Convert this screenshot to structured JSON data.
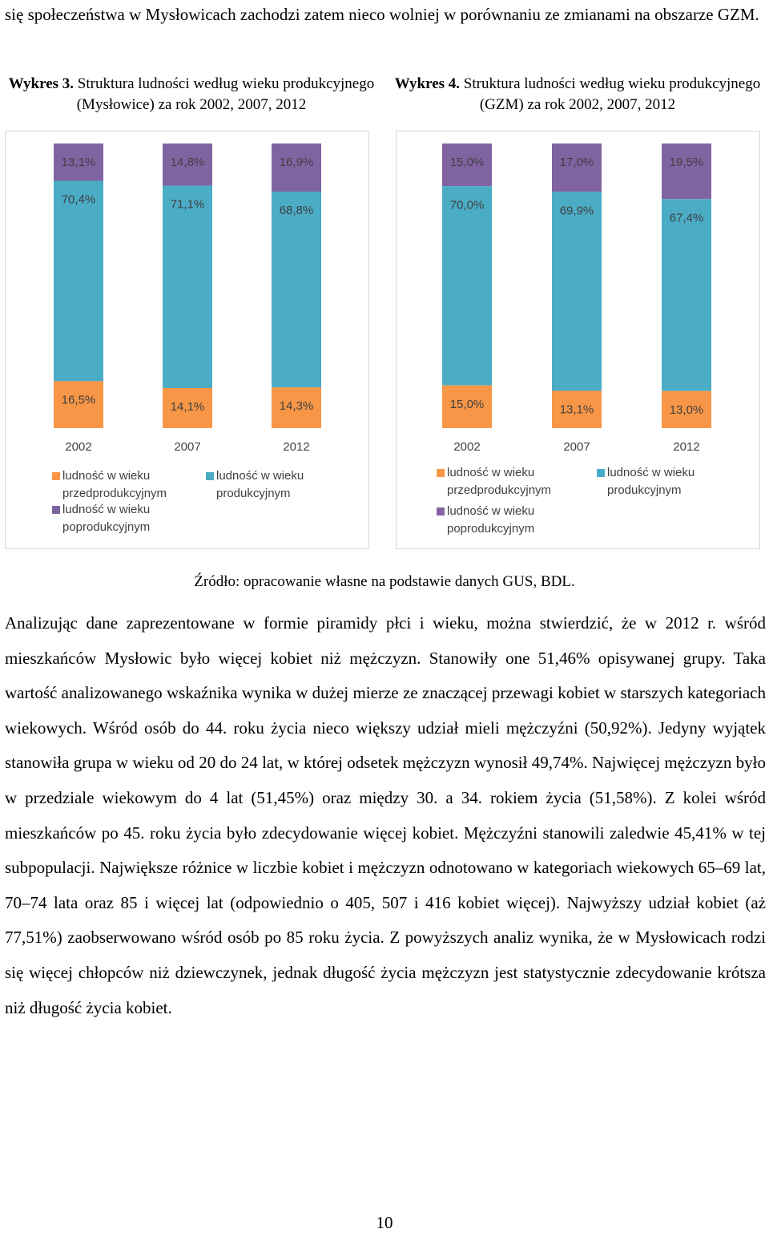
{
  "intro_text": "się społeczeństwa w Mysłowicach zachodzi zatem nieco wolniej w porównaniu ze zmianami na obszarze GZM.",
  "charts": [
    {
      "label": "Wykres 3.",
      "title": "Struktura ludności według wieku produkcyjnego (Mysłowice) za rok 2002, 2007, 2012"
    },
    {
      "label": "Wykres 4.",
      "title": "Struktura ludności według wieku produkcyjnego (GZM) za rok 2002, 2007, 2012"
    }
  ],
  "chart_data": [
    {
      "type": "bar",
      "stacked": "100%",
      "categories": [
        "2002",
        "2007",
        "2012"
      ],
      "series": [
        {
          "name": "ludność w wieku przedprodukcyjnym",
          "values": [
            16.5,
            14.1,
            14.3
          ],
          "labels": [
            "16,5%",
            "14,1%",
            "14,3%"
          ],
          "color": "#F79646"
        },
        {
          "name": "ludność w wieku produkcyjnym",
          "values": [
            70.4,
            71.1,
            68.8
          ],
          "labels": [
            "70,4%",
            "71,1%",
            "68,8%"
          ],
          "color": "#4BACC6"
        },
        {
          "name": "ludność w wieku poprodukcyjnym",
          "values": [
            13.1,
            14.8,
            16.9
          ],
          "labels": [
            "13,1%",
            "14,8%",
            "16,9%"
          ],
          "color": "#8064A2"
        }
      ],
      "legend": "bottom",
      "grid": false
    },
    {
      "type": "bar",
      "stacked": "100%",
      "categories": [
        "2002",
        "2007",
        "2012"
      ],
      "series": [
        {
          "name": "ludność w wieku przedprodukcyjnym",
          "values": [
            15.0,
            13.1,
            13.0
          ],
          "labels": [
            "15,0%",
            "13,1%",
            "13,0%"
          ],
          "color": "#F79646"
        },
        {
          "name": "ludność w wieku produkcyjnym",
          "values": [
            70.0,
            69.9,
            67.4
          ],
          "labels": [
            "70,0%",
            "69,9%",
            "67,4%"
          ],
          "color": "#4BACC6"
        },
        {
          "name": "ludność w wieku poprodukcyjnym",
          "values": [
            15.0,
            17.0,
            19.5
          ],
          "labels": [
            "15,0%",
            "17,0%",
            "19,5%"
          ],
          "color": "#8064A2"
        }
      ],
      "legend": "bottom",
      "grid": false
    }
  ],
  "source": "Źródło: opracowanie własne na podstawie danych GUS, BDL.",
  "body_text": "Analizując dane zaprezentowane w formie piramidy płci i wieku, można stwierdzić, że w 2012 r. wśród mieszkańców Mysłowic było więcej kobiet niż mężczyzn. Stanowiły one 51,46% opisywanej grupy. Taka wartość analizowanego wskaźnika wynika w dużej mierze ze znaczącej przewagi kobiet w starszych kategoriach wiekowych. Wśród osób do 44. roku życia nieco większy udział mieli mężczyźni (50,92%). Jedyny wyjątek stanowiła grupa w wieku od 20 do 24 lat, w której odsetek mężczyzn wynosił 49,74%. Najwięcej mężczyzn było w przedziale wiekowym do 4 lat (51,45%) oraz między 30. a 34. rokiem życia (51,58%). Z kolei wśród mieszkańców po 45. roku życia było zdecydowanie więcej kobiet. Mężczyźni stanowili zaledwie 45,41% w tej subpopulacji. Największe różnice w liczbie kobiet i mężczyzn odnotowano w kategoriach wiekowych 65–69 lat, 70–74 lata oraz 85 i więcej lat (odpowiednio o 405, 507 i 416 kobiet więcej). Najwyższy udział kobiet (aż 77,51%) zaobserwowano wśród osób po 85 roku życia. Z powyższych analiz wynika, że w Mysłowicach rodzi się więcej chłopców niż dziewczynek, jednak długość życia mężczyzn jest statystycznie zdecydowanie krótsza niż długość życia kobiet.",
  "page_number": "10"
}
